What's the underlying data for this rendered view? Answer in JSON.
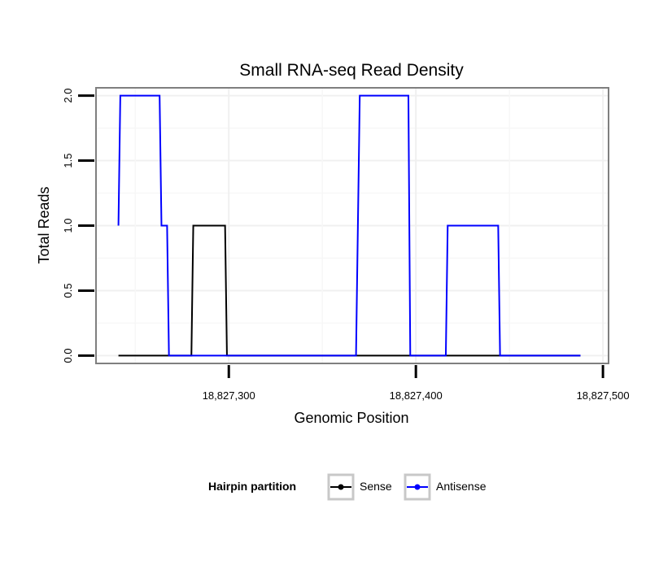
{
  "chart_data": {
    "type": "line",
    "title": "Small RNA-seq Read Density",
    "xlabel": "Genomic Position",
    "ylabel": "Total Reads",
    "xlim": [
      18827229,
      18827503
    ],
    "ylim": [
      -0.06,
      2.06
    ],
    "x_ticks": [
      {
        "value": 18827300,
        "label": "18,827,300"
      },
      {
        "value": 18827400,
        "label": "18,827,400"
      },
      {
        "value": 18827500,
        "label": "18,827,500"
      }
    ],
    "y_ticks": [
      {
        "value": 0.0,
        "label": "0.0"
      },
      {
        "value": 0.5,
        "label": "0.5"
      },
      {
        "value": 1.0,
        "label": "1.0"
      },
      {
        "value": 1.5,
        "label": "1.5"
      },
      {
        "value": 2.0,
        "label": "2.0"
      }
    ],
    "grid": true,
    "legend": {
      "title": "Hairpin partition",
      "position": "bottom"
    },
    "series": [
      {
        "name": "Sense",
        "color": "#000000",
        "x": [
          18827241,
          18827280,
          18827281,
          18827298,
          18827299,
          18827488
        ],
        "y": [
          0,
          0,
          1,
          1,
          0,
          0
        ]
      },
      {
        "name": "Antisense",
        "color": "#0000ff",
        "x": [
          18827241,
          18827242,
          18827263,
          18827264,
          18827267,
          18827268,
          18827368,
          18827369,
          18827370,
          18827396,
          18827397,
          18827416,
          18827417,
          18827444,
          18827445,
          18827488
        ],
        "y": [
          1,
          2,
          2,
          1,
          1,
          0,
          0,
          1,
          2,
          2,
          0,
          0,
          1,
          1,
          0,
          0
        ]
      }
    ]
  }
}
